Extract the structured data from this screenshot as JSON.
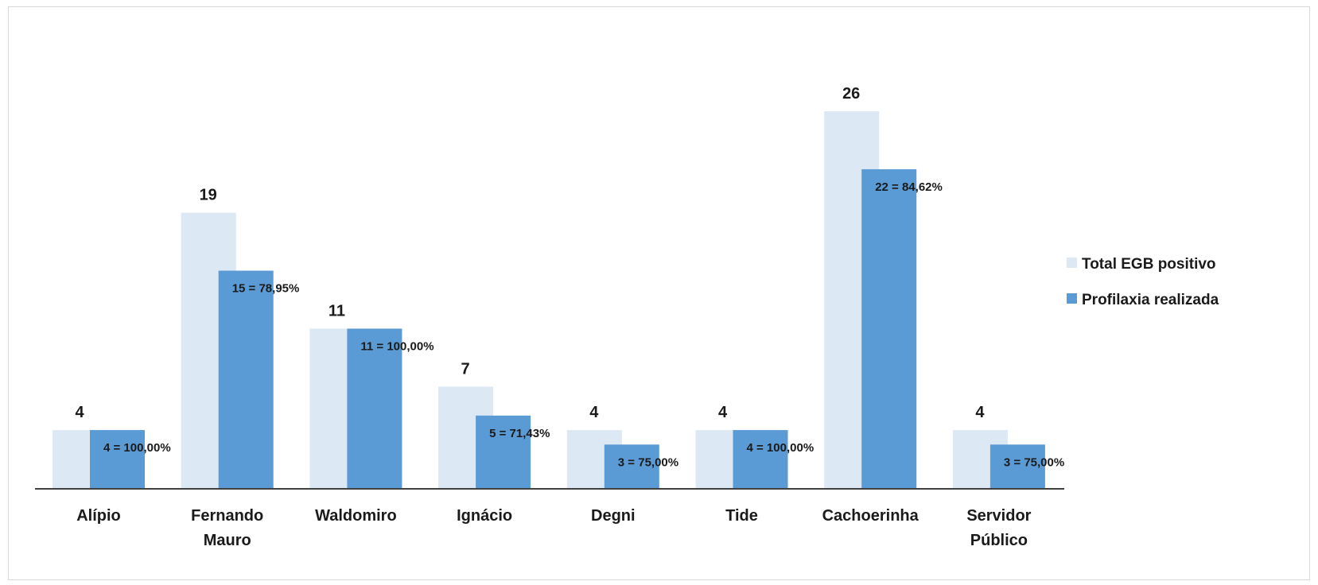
{
  "chart_data": {
    "type": "bar",
    "categories": [
      [
        "Alípio"
      ],
      [
        "Fernando",
        "Mauro"
      ],
      [
        "Waldomiro"
      ],
      [
        "Ignácio"
      ],
      [
        "Degni"
      ],
      [
        "Tide"
      ],
      [
        "Cachoerinha"
      ],
      [
        "Servidor",
        "Público"
      ]
    ],
    "series": [
      {
        "name": "Total EGB positivo",
        "color": "#dde8f5",
        "values": [
          4,
          19,
          11,
          7,
          4,
          4,
          26,
          4
        ],
        "labels": [
          "4",
          "19",
          "11",
          "7",
          "4",
          "4",
          "26",
          "4"
        ]
      },
      {
        "name": "Profilaxia realizada",
        "color": "#5b9bd5",
        "values": [
          4,
          15,
          11,
          5,
          3,
          4,
          22,
          3
        ],
        "labels": [
          "4 = 100,00%",
          "15 = 78,95%",
          "11 = 100,00%",
          "5 = 71,43%",
          "3 = 75,00%",
          "4 = 100,00%",
          "22 = 84,62%",
          "3 = 75,00%"
        ]
      }
    ],
    "ylim": [
      0,
      26
    ],
    "grid": false,
    "legend_position": "right"
  }
}
